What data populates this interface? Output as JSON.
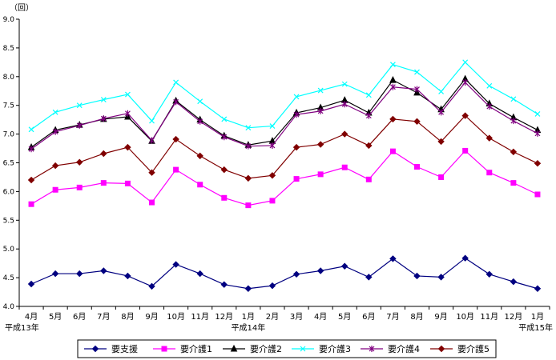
{
  "chart_data": {
    "type": "line",
    "unit_label": "（回）",
    "ylim": [
      4.0,
      9.0
    ],
    "ytick_step": 0.5,
    "grid": false,
    "categories": [
      "4月",
      "5月",
      "6月",
      "7月",
      "8月",
      "9月",
      "10月",
      "11月",
      "12月",
      "1月",
      "2月",
      "3月",
      "4月",
      "5月",
      "6月",
      "7月",
      "8月",
      "9月",
      "10月",
      "11月",
      "12月",
      "1月"
    ],
    "year_labels": [
      {
        "index": 0,
        "text": "平成13年"
      },
      {
        "index": 9,
        "text": "平成14年"
      },
      {
        "index": 21,
        "text": "平成15年"
      }
    ],
    "legend_position": "bottom",
    "series": [
      {
        "name": "要支援",
        "color": "#000080",
        "marker": "diamond",
        "values": [
          4.39,
          4.57,
          4.57,
          4.62,
          4.53,
          4.35,
          4.73,
          4.57,
          4.38,
          4.31,
          4.36,
          4.56,
          4.62,
          4.7,
          4.51,
          4.83,
          4.53,
          4.51,
          4.84,
          4.56,
          4.43,
          4.31
        ]
      },
      {
        "name": "要介護1",
        "color": "#ff00ff",
        "marker": "square",
        "values": [
          5.78,
          6.03,
          6.07,
          6.15,
          6.14,
          5.81,
          6.38,
          6.12,
          5.89,
          5.76,
          5.84,
          6.22,
          6.3,
          6.42,
          6.21,
          6.7,
          6.43,
          6.25,
          6.71,
          6.33,
          6.15,
          5.95
        ]
      },
      {
        "name": "要介護2",
        "color": "#000000",
        "marker": "triangle",
        "values": [
          6.77,
          7.07,
          7.16,
          7.26,
          7.3,
          6.88,
          7.58,
          7.25,
          6.97,
          6.81,
          6.88,
          7.37,
          7.46,
          7.59,
          7.37,
          7.94,
          7.72,
          7.43,
          7.96,
          7.53,
          7.29,
          7.07
        ]
      },
      {
        "name": "要介護3",
        "color": "#00ffff",
        "marker": "x",
        "values": [
          7.08,
          7.38,
          7.5,
          7.6,
          7.69,
          7.23,
          7.9,
          7.57,
          7.26,
          7.11,
          7.14,
          7.65,
          7.76,
          7.87,
          7.68,
          8.21,
          8.08,
          7.74,
          8.25,
          7.84,
          7.61,
          7.35
        ]
      },
      {
        "name": "要介護4",
        "color": "#800080",
        "marker": "star",
        "values": [
          6.74,
          7.04,
          7.15,
          7.27,
          7.36,
          6.89,
          7.56,
          7.22,
          6.95,
          6.79,
          6.8,
          7.34,
          7.4,
          7.52,
          7.32,
          7.82,
          7.78,
          7.38,
          7.9,
          7.48,
          7.23,
          7.01
        ]
      },
      {
        "name": "要介護5",
        "color": "#800000",
        "marker": "circle",
        "values": [
          6.2,
          6.45,
          6.51,
          6.66,
          6.77,
          6.33,
          6.91,
          6.62,
          6.38,
          6.23,
          6.28,
          6.77,
          6.82,
          7.0,
          6.8,
          7.26,
          7.22,
          6.87,
          7.32,
          6.93,
          6.69,
          6.49
        ]
      }
    ]
  }
}
